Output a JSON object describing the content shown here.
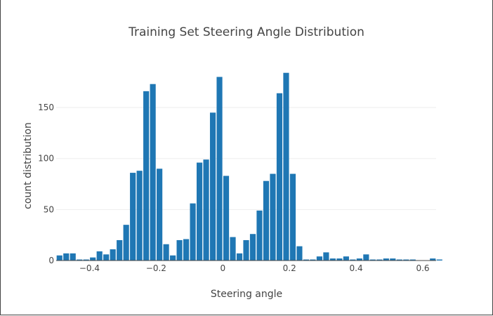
{
  "chart_data": {
    "type": "bar",
    "title": "Training Set Steering Angle Distribution",
    "xlabel": "Steering angle",
    "ylabel": "count distribution",
    "xlim": [
      -0.5,
      0.64
    ],
    "ylim": [
      0,
      190
    ],
    "x_ticks": [
      -0.4,
      -0.2,
      0,
      0.2,
      0.4,
      0.6
    ],
    "x_tick_labels": [
      "−0.4",
      "−0.2",
      "0",
      "0.2",
      "0.4",
      "0.6"
    ],
    "y_ticks": [
      0,
      50,
      100,
      150
    ],
    "y_tick_labels": [
      "0",
      "50",
      "100",
      "150"
    ],
    "grid": "horizontal",
    "color": "#1f77b4",
    "bin_start": -0.5,
    "bin_width": 0.02,
    "values": [
      5,
      7,
      7,
      1,
      1,
      3,
      9,
      6,
      11,
      20,
      35,
      86,
      88,
      166,
      173,
      90,
      16,
      5,
      20,
      21,
      56,
      96,
      99,
      145,
      180,
      83,
      23,
      7,
      20,
      26,
      49,
      78,
      85,
      164,
      184,
      85,
      14,
      1,
      1,
      4,
      8,
      2,
      2,
      4,
      1,
      2,
      6,
      1,
      1,
      2,
      2,
      1,
      1,
      1,
      0,
      0,
      2,
      1
    ]
  }
}
